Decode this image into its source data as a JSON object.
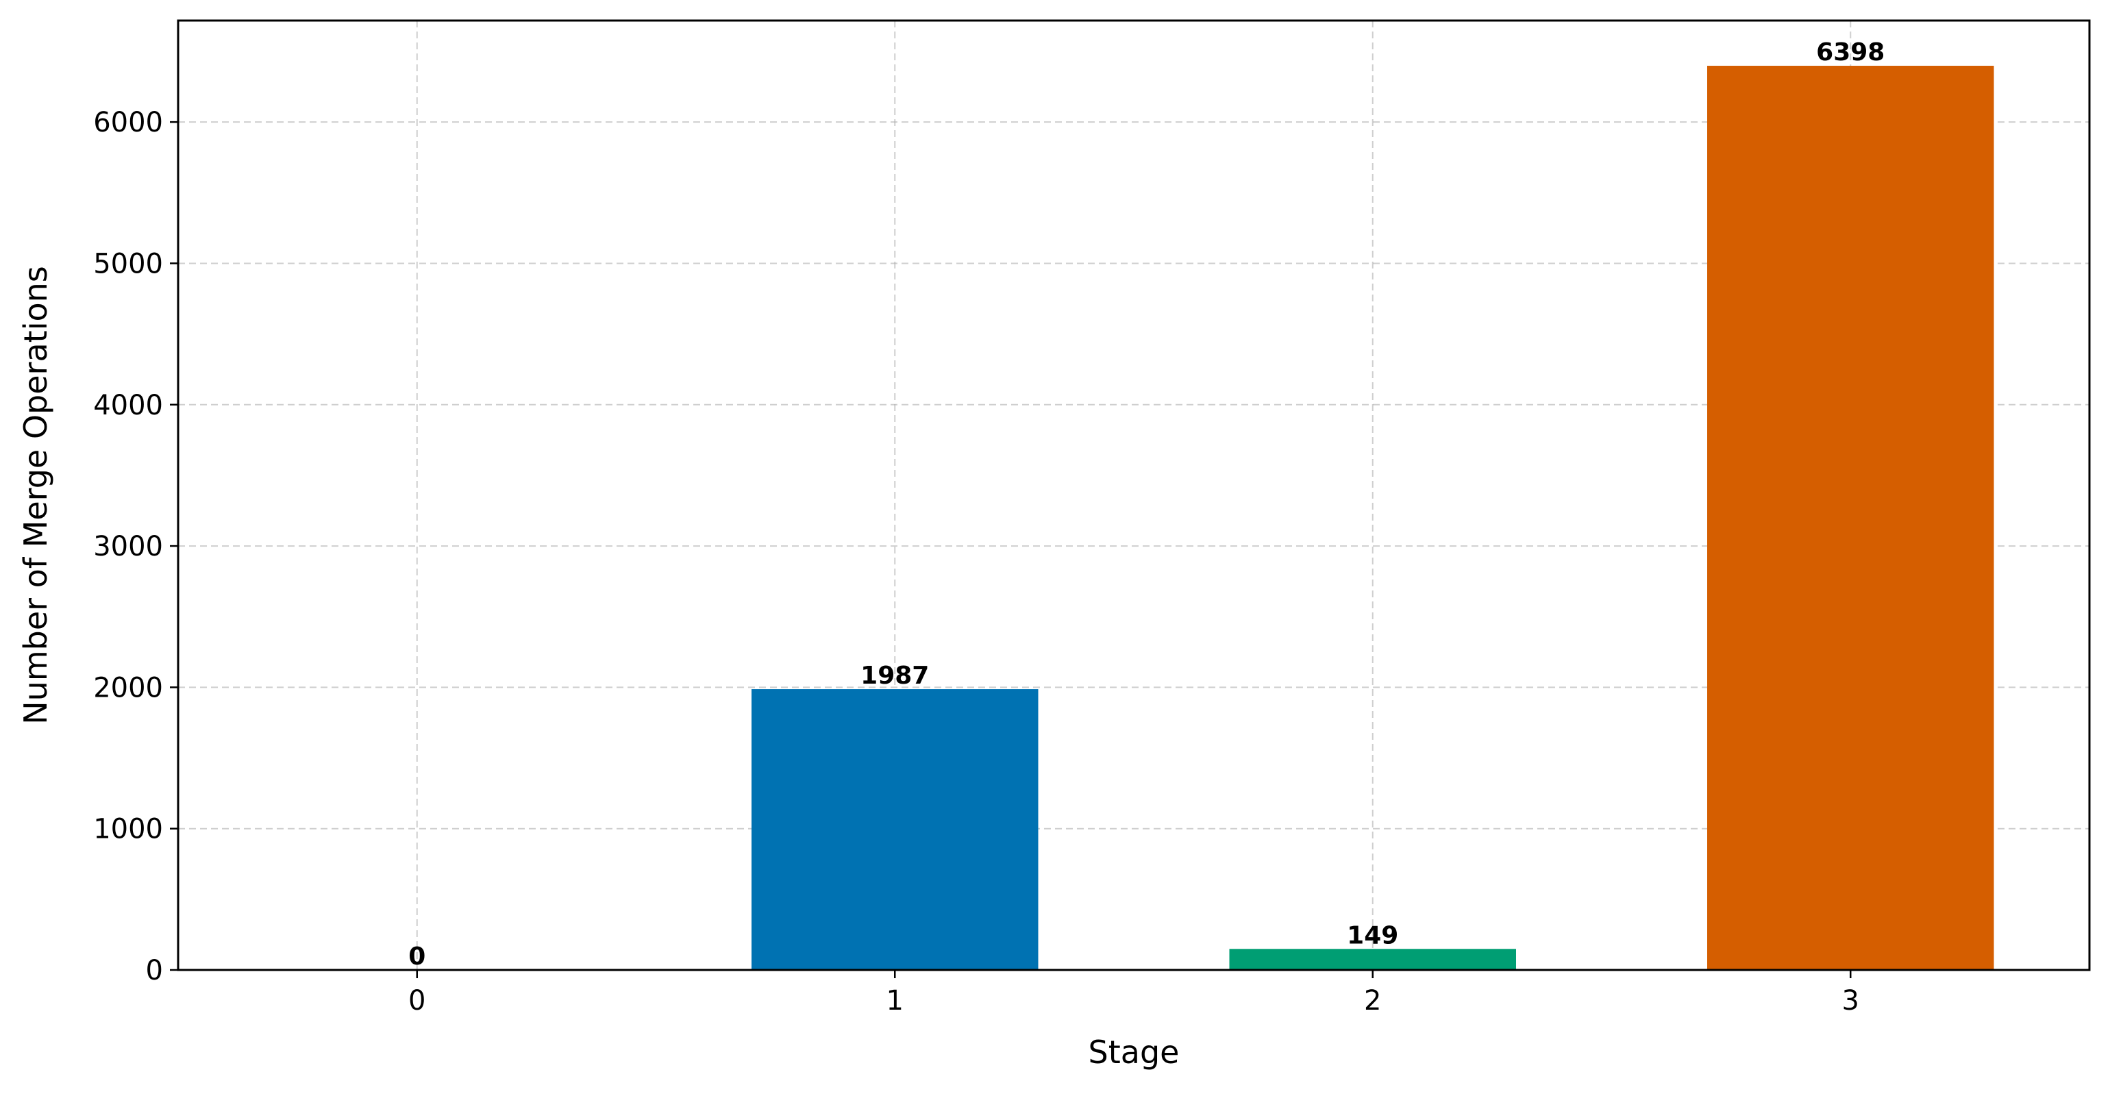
{
  "chart_data": {
    "type": "bar",
    "title": "",
    "xlabel": "Stage",
    "ylabel": "Number of Merge Operations",
    "categories": [
      "0",
      "1",
      "2",
      "3"
    ],
    "values": [
      0,
      1987,
      149,
      6398
    ],
    "data_labels": [
      "0",
      "1987",
      "149",
      "6398"
    ],
    "bar_colors": [
      "#0072b2",
      "#0072b2",
      "#009e73",
      "#d55e00"
    ],
    "ylim": [
      0,
      6718
    ],
    "yticks": [
      0,
      1000,
      2000,
      3000,
      4000,
      5000,
      6000
    ],
    "ytick_labels": [
      "0",
      "1000",
      "2000",
      "3000",
      "4000",
      "5000",
      "6000"
    ],
    "grid": true,
    "legend": "none"
  }
}
